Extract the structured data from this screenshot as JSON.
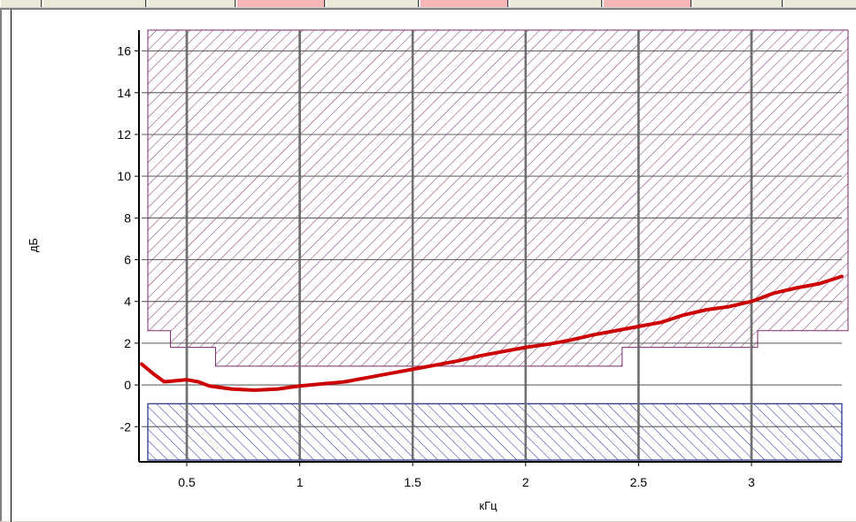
{
  "chart_data": {
    "type": "line",
    "xlabel": "кГц",
    "ylabel": "дБ",
    "xlim": [
      0.3,
      3.4
    ],
    "ylim": [
      -3.6,
      17
    ],
    "x_ticks": [
      "0.5",
      "1",
      "1.5",
      "2",
      "2.5",
      "3"
    ],
    "y_ticks": [
      "-2",
      "0",
      "2",
      "4",
      "6",
      "8",
      "10",
      "12",
      "14",
      "16"
    ],
    "grid": true,
    "colors": {
      "series": "#cc0000",
      "upper_mask": "#7a2a6e",
      "lower_mask": "#1a2a8a",
      "grid_major": "#707070",
      "grid_minor": "#606060"
    },
    "upper_mask": {
      "top": 17,
      "outline": [
        [
          0.3,
          2.6
        ],
        [
          0.4,
          2.6
        ],
        [
          0.4,
          1.8
        ],
        [
          0.6,
          1.8
        ],
        [
          0.6,
          0.9
        ],
        [
          2.4,
          0.9
        ],
        [
          2.4,
          1.8
        ],
        [
          3.0,
          1.8
        ],
        [
          3.0,
          2.6
        ],
        [
          3.4,
          2.6
        ]
      ]
    },
    "lower_mask": {
      "top": -0.9,
      "bottom": -3.6
    },
    "series": [
      {
        "x": [
          0.3,
          0.35,
          0.4,
          0.45,
          0.5,
          0.55,
          0.6,
          0.7,
          0.8,
          0.9,
          1.0,
          1.1,
          1.2,
          1.3,
          1.4,
          1.5,
          1.6,
          1.7,
          1.8,
          1.9,
          2.0,
          2.1,
          2.2,
          2.3,
          2.4,
          2.5,
          2.6,
          2.7,
          2.8,
          2.9,
          3.0,
          3.1,
          3.2,
          3.3,
          3.4
        ],
        "y": [
          1.0,
          0.55,
          0.15,
          0.2,
          0.25,
          0.15,
          -0.05,
          -0.2,
          -0.25,
          -0.2,
          -0.05,
          0.05,
          0.15,
          0.35,
          0.55,
          0.75,
          0.95,
          1.15,
          1.4,
          1.6,
          1.8,
          1.95,
          2.15,
          2.4,
          2.6,
          2.8,
          3.0,
          3.35,
          3.6,
          3.75,
          4.0,
          4.4,
          4.65,
          4.85,
          5.2
        ]
      }
    ]
  }
}
